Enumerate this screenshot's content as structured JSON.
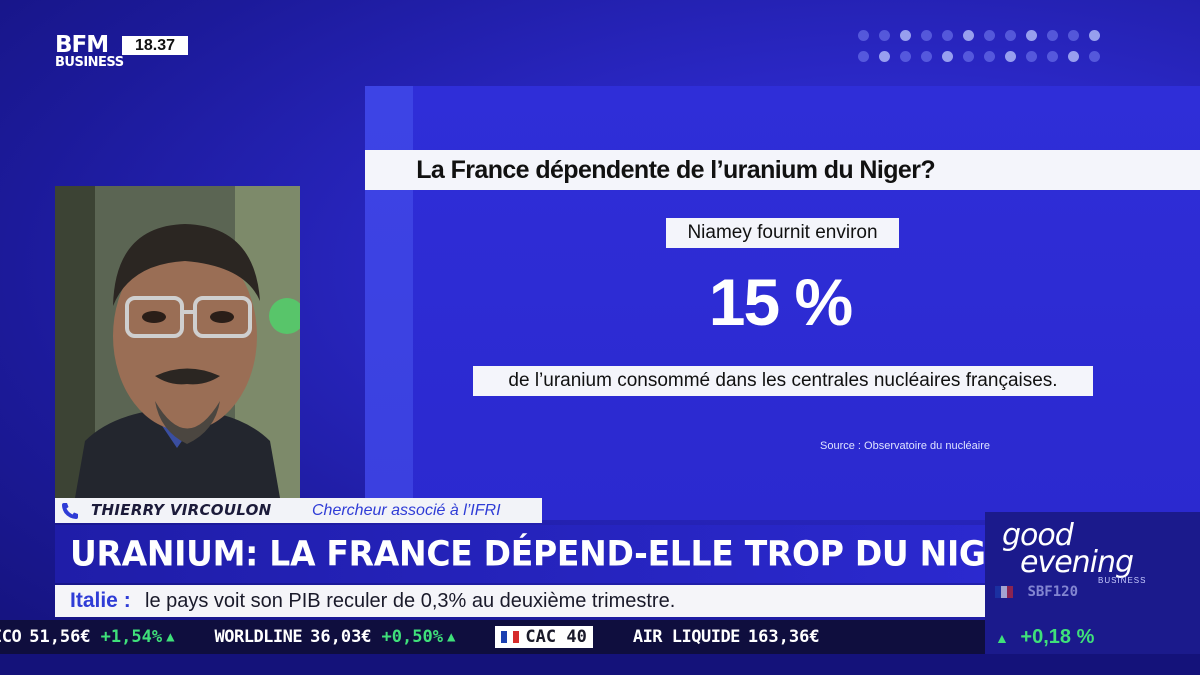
{
  "channel": {
    "logo_line1": "BFM",
    "logo_line2": "BUSINESS",
    "clock": "18.37"
  },
  "infographic": {
    "question": "La France dépendente de l’uranium du Niger?",
    "intro": "Niamey fournit environ",
    "figure": "15 %",
    "figure_value": 15,
    "detail": "de l’uranium consommé dans les centrales nucléaires françaises.",
    "source": "Source : Observatoire du nucléaire"
  },
  "guest": {
    "name": "THIERRY VIRCOULON",
    "title": "Chercheur associé à l’IFRI",
    "phone_icon": "phone-icon"
  },
  "headline": "URANIUM: LA FRANCE DÉPEND-ELLE TROP DU NIGER?",
  "news_ticker": {
    "label": "Italie :",
    "text": "le pays voit son PIB reculer de 0,3% au deuxième trimestre."
  },
  "market_ticker": {
    "items": [
      {
        "name": "ICO",
        "value": "51,56€",
        "change": "+1,54%"
      },
      {
        "name": "WORLDLINE",
        "value": "36,03€",
        "change": "+0,50%"
      },
      {
        "name": "CAC 40",
        "value": "",
        "change": "",
        "highlight": true
      },
      {
        "name": "AIR LIQUIDE",
        "value": "163,36€",
        "change": ""
      }
    ]
  },
  "branding_box": {
    "line1": "good",
    "line2": "evening",
    "line3": "BUSINESS",
    "index_label": "SBF120",
    "index_change": "+0,18 %"
  },
  "colors": {
    "accent_blue": "#2f3cd6",
    "background_blue": "#2b29cf",
    "market_positive": "#3fe07a"
  }
}
